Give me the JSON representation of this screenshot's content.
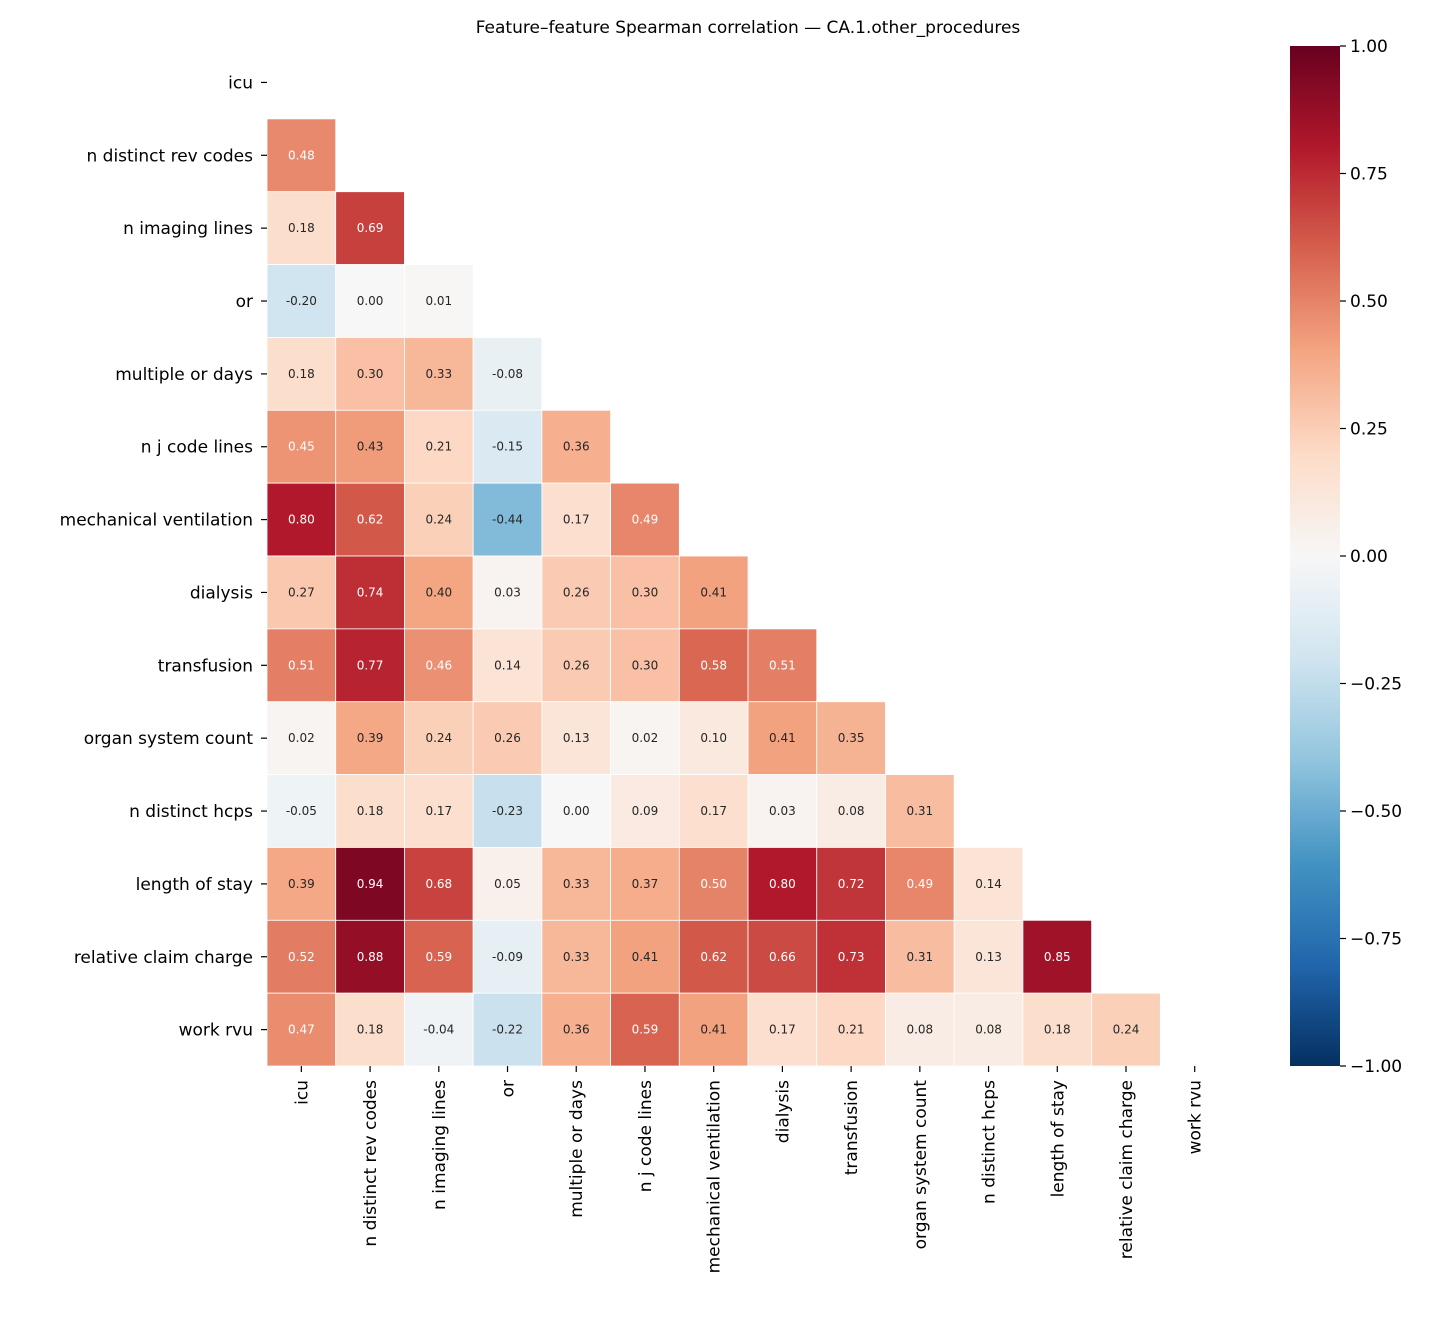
{
  "chart_data": {
    "type": "heatmap",
    "title": "Feature–feature Spearman correlation — CA.1.other_procedures",
    "colormap": "RdBu_r",
    "vmin": -1.0,
    "vmax": 1.0,
    "mask": "upper triangle including diagonal",
    "labels": [
      "icu",
      "n distinct rev codes",
      "n imaging lines",
      "or",
      "multiple or days",
      "n j code lines",
      "mechanical ventilation",
      "dialysis",
      "transfusion",
      "organ system count",
      "n distinct hcps",
      "length of stay",
      "relative claim charge",
      "work rvu"
    ],
    "lower_triangle": [
      [],
      [
        0.48
      ],
      [
        0.18,
        0.69
      ],
      [
        -0.2,
        0.0,
        0.01
      ],
      [
        0.18,
        0.3,
        0.33,
        -0.08
      ],
      [
        0.45,
        0.43,
        0.21,
        -0.15,
        0.36
      ],
      [
        0.8,
        0.62,
        0.24,
        -0.44,
        0.17,
        0.49
      ],
      [
        0.27,
        0.74,
        0.4,
        0.03,
        0.26,
        0.3,
        0.41
      ],
      [
        0.51,
        0.77,
        0.46,
        0.14,
        0.26,
        0.3,
        0.58,
        0.51
      ],
      [
        0.02,
        0.39,
        0.24,
        0.26,
        0.13,
        0.02,
        0.1,
        0.41,
        0.35
      ],
      [
        -0.05,
        0.18,
        0.17,
        -0.23,
        -0.0,
        0.09,
        0.17,
        0.03,
        0.08,
        0.31
      ],
      [
        0.39,
        0.94,
        0.68,
        0.05,
        0.33,
        0.37,
        0.5,
        0.8,
        0.72,
        0.49,
        0.14
      ],
      [
        0.52,
        0.88,
        0.59,
        -0.09,
        0.33,
        0.41,
        0.62,
        0.66,
        0.73,
        0.31,
        0.13,
        0.85
      ],
      [
        0.47,
        0.18,
        -0.04,
        -0.22,
        0.36,
        0.59,
        0.41,
        0.17,
        0.21,
        0.08,
        0.08,
        0.18,
        0.24
      ]
    ],
    "colorbar_ticks": [
      "1.00",
      "0.75",
      "0.50",
      "0.25",
      "0.00",
      "−0.25",
      "−0.50",
      "−0.75",
      "−1.00"
    ],
    "colorbar_tick_values": [
      1.0,
      0.75,
      0.5,
      0.25,
      0.0,
      -0.25,
      -0.5,
      -0.75,
      -1.0
    ]
  }
}
